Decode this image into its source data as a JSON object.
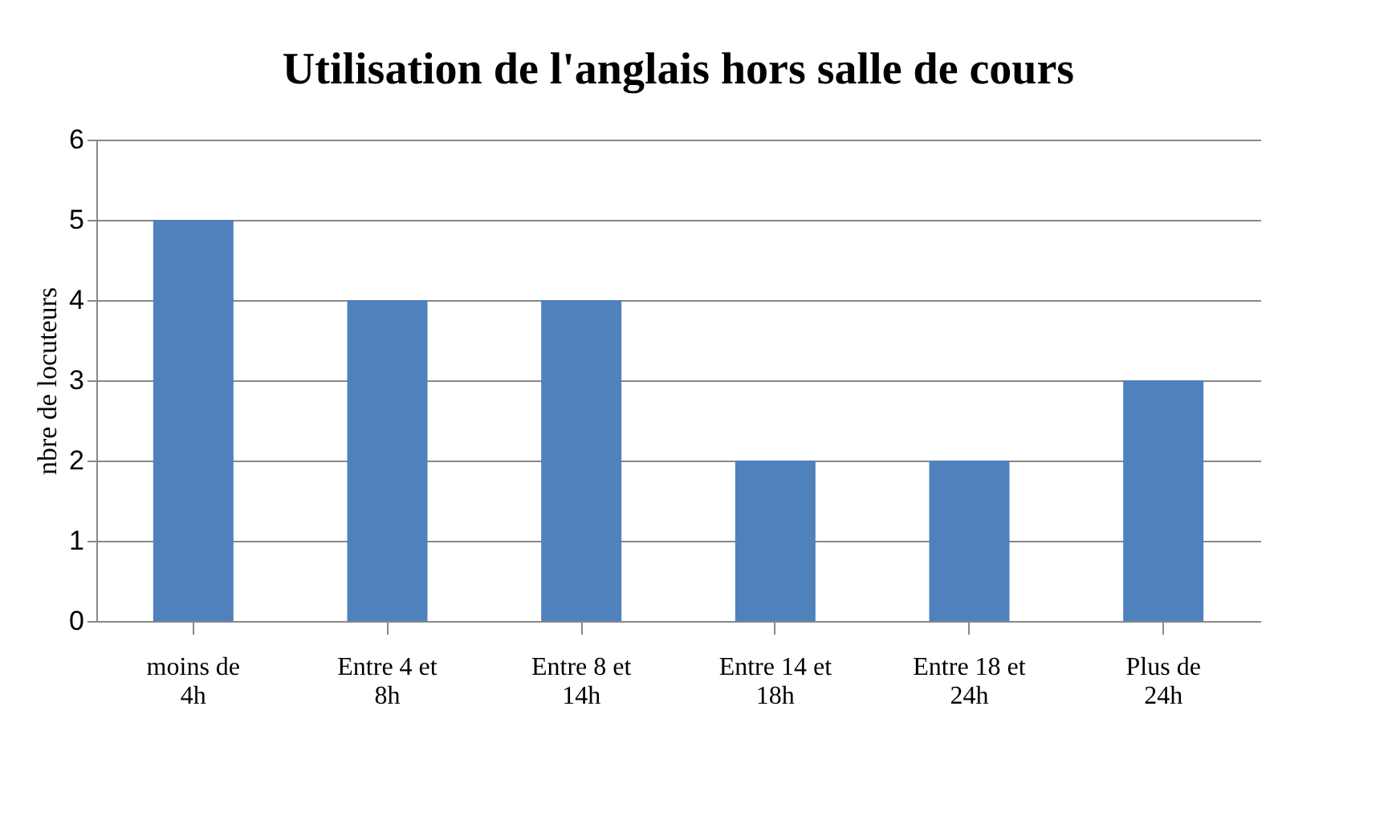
{
  "chart_data": {
    "type": "bar",
    "title": "Utilisation de l'anglais hors salle de cours",
    "ylabel": "nbre de locuteurs",
    "categories": [
      "moins de 4h",
      "Entre 4 et 8h",
      "Entre 8 et 14h",
      "Entre 14 et 18h",
      "Entre 18 et 24h",
      "Plus de 24h"
    ],
    "values": [
      5,
      4,
      4,
      2,
      2,
      3
    ],
    "color": "#4f81bd",
    "ylim": [
      0,
      6
    ],
    "yticks": [
      0,
      1,
      2,
      3,
      4,
      5,
      6
    ],
    "grid": "y"
  }
}
